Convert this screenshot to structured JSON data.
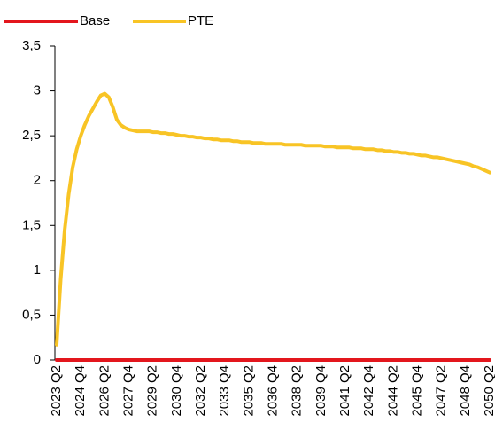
{
  "chart_data": {
    "type": "line",
    "categories": [
      "2023 Q2",
      null,
      null,
      null,
      null,
      null,
      "2024 Q4",
      null,
      null,
      null,
      null,
      null,
      "2026 Q2",
      null,
      null,
      null,
      null,
      null,
      "2027 Q4",
      null,
      null,
      null,
      null,
      null,
      "2029 Q2",
      null,
      null,
      null,
      null,
      null,
      "2030 Q4",
      null,
      null,
      null,
      null,
      null,
      "2032 Q2",
      null,
      null,
      null,
      null,
      null,
      "2033 Q4",
      null,
      null,
      null,
      null,
      null,
      "2035 Q2",
      null,
      null,
      null,
      null,
      null,
      "2036 Q4",
      null,
      null,
      null,
      null,
      null,
      "2038 Q2",
      null,
      null,
      null,
      null,
      null,
      "2039 Q4",
      null,
      null,
      null,
      null,
      null,
      "2041 Q2",
      null,
      null,
      null,
      null,
      null,
      "2042 Q4",
      null,
      null,
      null,
      null,
      null,
      "2044 Q2",
      null,
      null,
      null,
      null,
      null,
      "2045 Q4",
      null,
      null,
      null,
      null,
      null,
      "2047 Q2",
      null,
      null,
      null,
      null,
      null,
      "2048 Q4",
      null,
      null,
      null,
      null,
      null,
      "2050 Q2"
    ],
    "series": [
      {
        "name": "Base",
        "color": "#e3161d",
        "values": [
          0,
          0,
          0,
          0,
          0,
          0,
          0,
          0,
          0,
          0,
          0,
          0,
          0,
          0,
          0,
          0,
          0,
          0,
          0,
          0,
          0,
          0,
          0,
          0,
          0,
          0,
          0,
          0,
          0,
          0,
          0,
          0,
          0,
          0,
          0,
          0,
          0,
          0,
          0,
          0,
          0,
          0,
          0,
          0,
          0,
          0,
          0,
          0,
          0,
          0,
          0,
          0,
          0,
          0,
          0,
          0,
          0,
          0,
          0,
          0,
          0,
          0,
          0,
          0,
          0,
          0,
          0,
          0,
          0,
          0,
          0,
          0,
          0,
          0,
          0,
          0,
          0,
          0,
          0,
          0,
          0,
          0,
          0,
          0,
          0,
          0,
          0,
          0,
          0,
          0,
          0,
          0,
          0,
          0,
          0,
          0,
          0,
          0,
          0,
          0,
          0,
          0,
          0,
          0,
          0,
          0,
          0,
          0,
          0
        ]
      },
      {
        "name": "PTE",
        "color": "#f8c425",
        "values": [
          0.17,
          0.9,
          1.45,
          1.85,
          2.15,
          2.35,
          2.5,
          2.62,
          2.72,
          2.8,
          2.88,
          2.95,
          2.97,
          2.93,
          2.82,
          2.68,
          2.62,
          2.59,
          2.57,
          2.56,
          2.55,
          2.55,
          2.55,
          2.55,
          2.54,
          2.54,
          2.53,
          2.53,
          2.52,
          2.52,
          2.51,
          2.5,
          2.5,
          2.49,
          2.49,
          2.48,
          2.48,
          2.47,
          2.47,
          2.46,
          2.46,
          2.45,
          2.45,
          2.45,
          2.44,
          2.44,
          2.43,
          2.43,
          2.43,
          2.42,
          2.42,
          2.42,
          2.41,
          2.41,
          2.41,
          2.41,
          2.41,
          2.4,
          2.4,
          2.4,
          2.4,
          2.4,
          2.39,
          2.39,
          2.39,
          2.39,
          2.39,
          2.38,
          2.38,
          2.38,
          2.37,
          2.37,
          2.37,
          2.37,
          2.36,
          2.36,
          2.36,
          2.35,
          2.35,
          2.35,
          2.34,
          2.34,
          2.33,
          2.33,
          2.32,
          2.32,
          2.31,
          2.31,
          2.3,
          2.3,
          2.29,
          2.28,
          2.28,
          2.27,
          2.26,
          2.26,
          2.25,
          2.24,
          2.23,
          2.22,
          2.21,
          2.2,
          2.19,
          2.18,
          2.16,
          2.15,
          2.13,
          2.11,
          2.09
        ]
      }
    ],
    "ylim": [
      0,
      3.5
    ],
    "yticks": [
      0,
      {
        "value": 0.5,
        "label": "0,5"
      },
      1,
      {
        "value": 1.5,
        "label": "1,5"
      },
      2,
      {
        "value": 2.5,
        "label": "2,5"
      },
      3,
      {
        "value": 3.5,
        "label": "3,5"
      }
    ],
    "grid": false
  }
}
